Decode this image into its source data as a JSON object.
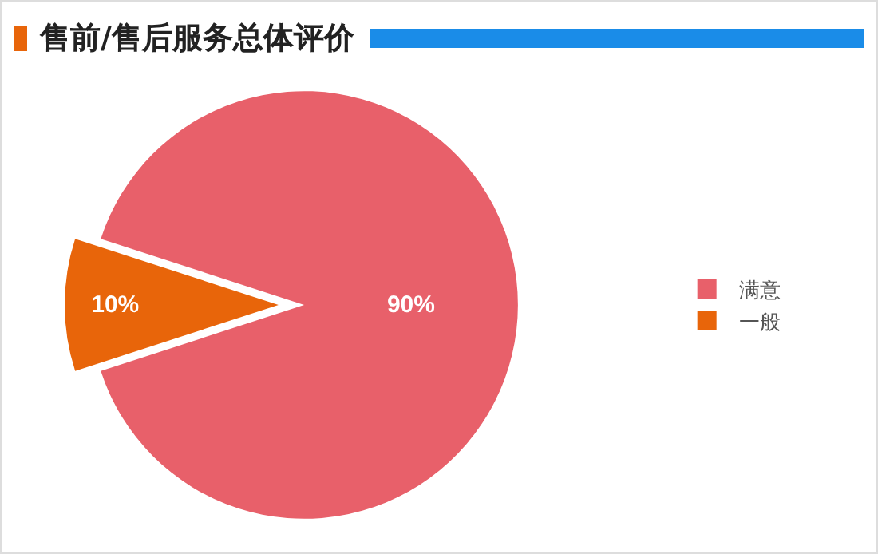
{
  "chart_data": {
    "type": "pie",
    "title": "售前/售后服务总体评价",
    "categories": [
      "满意",
      "一般"
    ],
    "values": [
      90,
      10
    ],
    "colors": [
      "#e8606a",
      "#e8650a"
    ],
    "value_labels": [
      "90%",
      "10%"
    ],
    "legend": "right"
  }
}
